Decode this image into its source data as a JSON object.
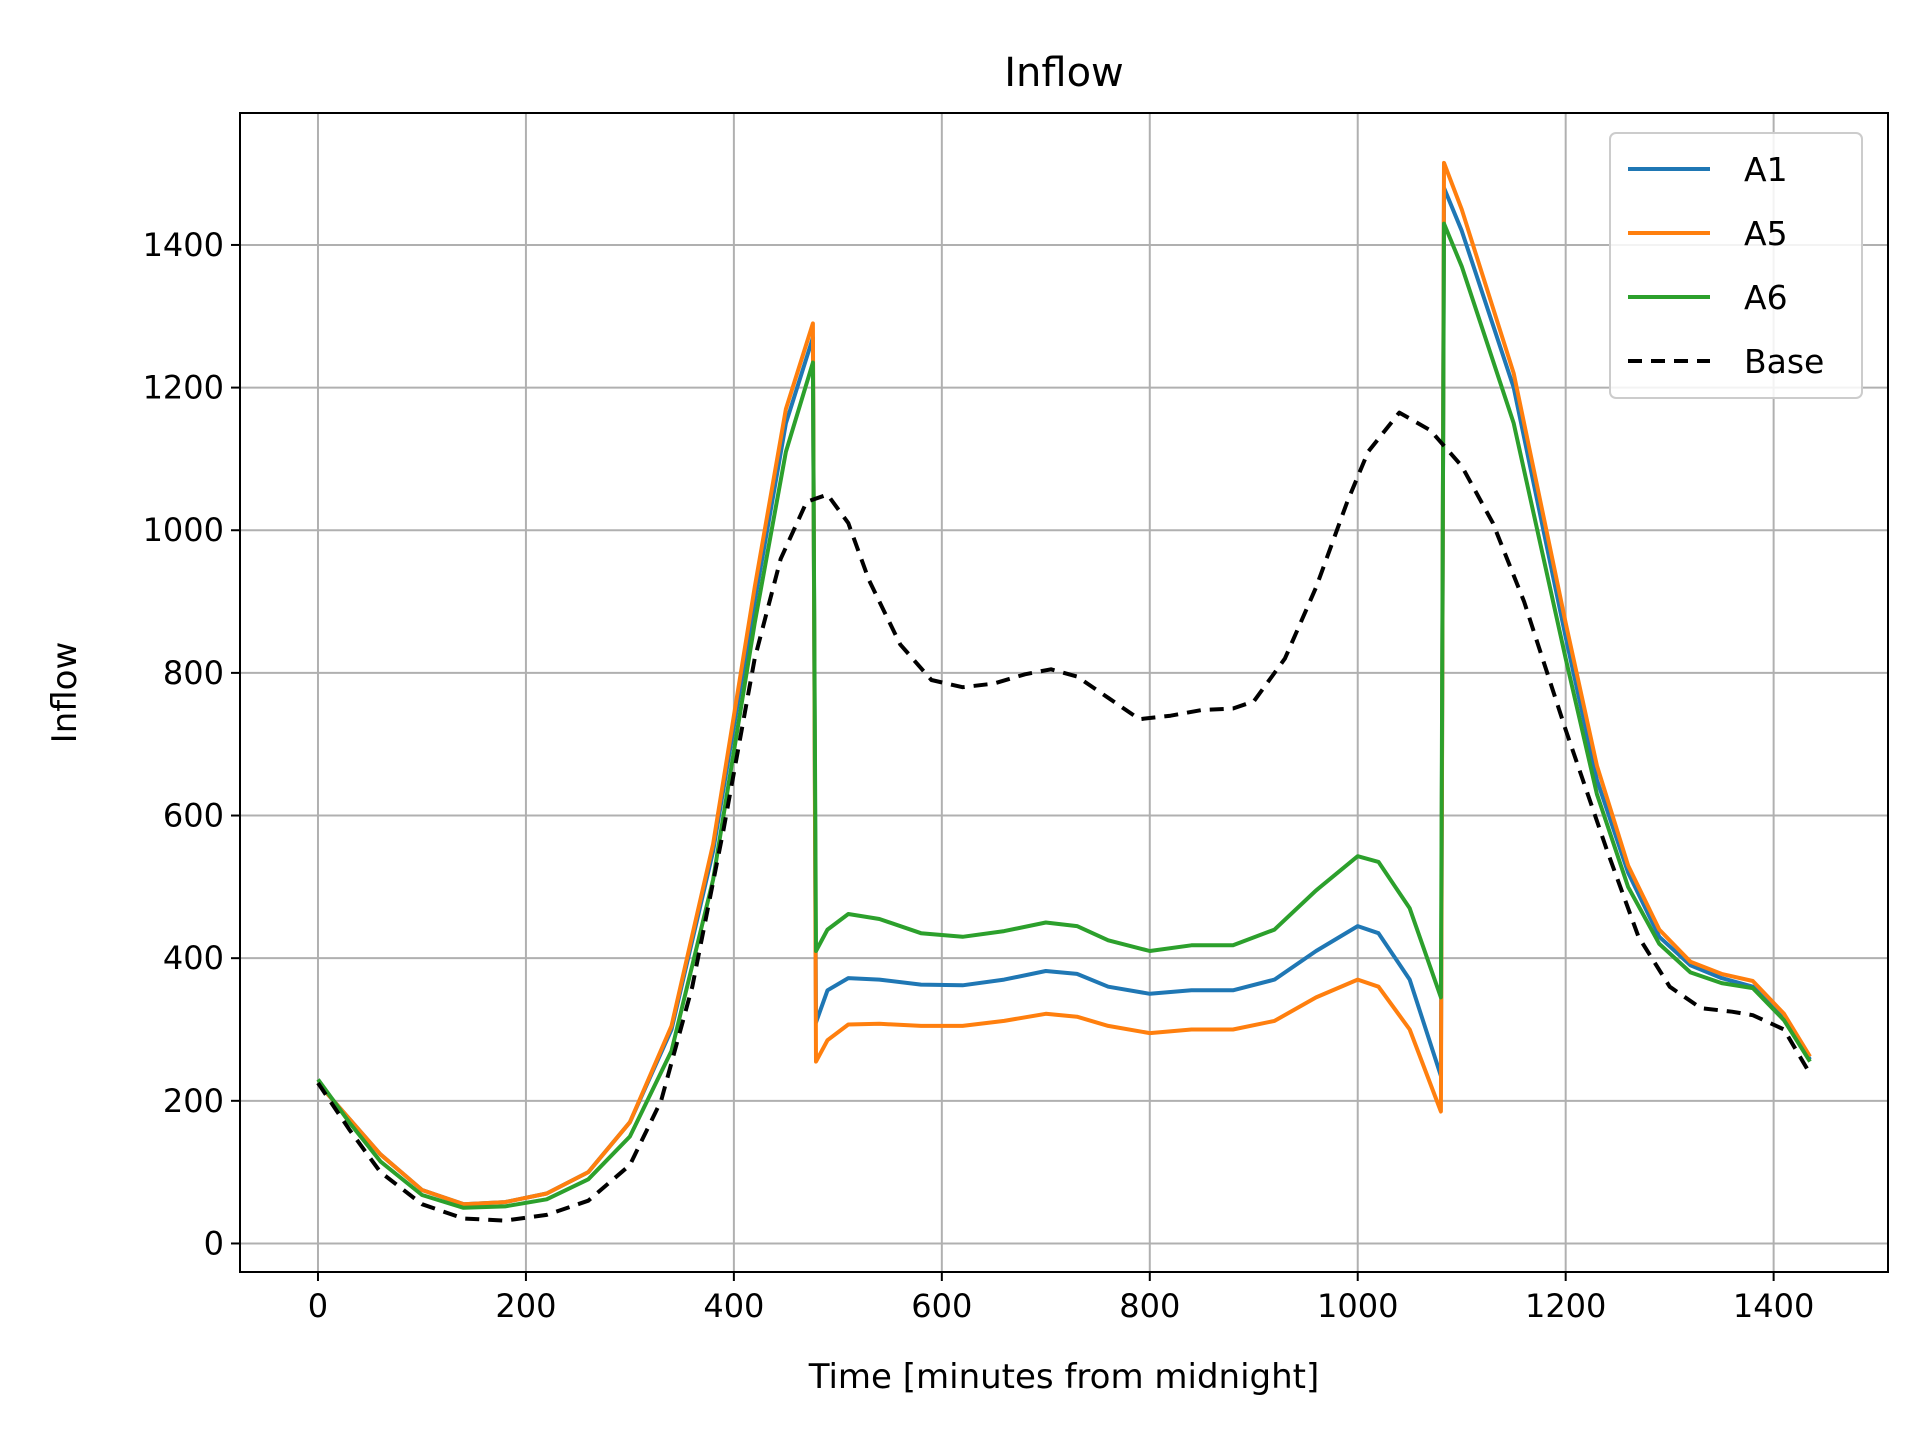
{
  "chart_data": {
    "type": "line",
    "title": "Inflow",
    "xlabel": "Time [minutes from midnight]",
    "ylabel": "Inflow",
    "xlim": [
      -75,
      1510
    ],
    "ylim": [
      -40,
      1585
    ],
    "xticks": [
      0,
      200,
      400,
      600,
      800,
      1000,
      1200,
      1400
    ],
    "yticks": [
      0,
      200,
      400,
      600,
      800,
      1000,
      1200,
      1400
    ],
    "xtick_labels": [
      "0",
      "200",
      "400",
      "600",
      "800",
      "1000",
      "1200",
      "1400"
    ],
    "ytick_labels": [
      "0",
      "200",
      "400",
      "600",
      "800",
      "1000",
      "1200",
      "1400"
    ],
    "grid": true,
    "legend_position": "top-right",
    "series": [
      {
        "name": "A1",
        "color": "#1f77b4",
        "dash": "solid",
        "points": [
          [
            0,
            225
          ],
          [
            30,
            175
          ],
          [
            60,
            125
          ],
          [
            100,
            75
          ],
          [
            140,
            55
          ],
          [
            180,
            58
          ],
          [
            220,
            70
          ],
          [
            260,
            100
          ],
          [
            300,
            170
          ],
          [
            340,
            300
          ],
          [
            380,
            550
          ],
          [
            420,
            900
          ],
          [
            450,
            1150
          ],
          [
            476,
            1270
          ],
          [
            479,
            310
          ],
          [
            490,
            355
          ],
          [
            510,
            372
          ],
          [
            540,
            370
          ],
          [
            580,
            363
          ],
          [
            620,
            362
          ],
          [
            660,
            370
          ],
          [
            700,
            382
          ],
          [
            730,
            378
          ],
          [
            760,
            360
          ],
          [
            800,
            350
          ],
          [
            840,
            355
          ],
          [
            880,
            355
          ],
          [
            920,
            370
          ],
          [
            960,
            410
          ],
          [
            1000,
            445
          ],
          [
            1020,
            435
          ],
          [
            1050,
            370
          ],
          [
            1080,
            235
          ],
          [
            1083,
            1480
          ],
          [
            1100,
            1420
          ],
          [
            1150,
            1200
          ],
          [
            1200,
            850
          ],
          [
            1230,
            650
          ],
          [
            1260,
            520
          ],
          [
            1290,
            430
          ],
          [
            1320,
            390
          ],
          [
            1350,
            372
          ],
          [
            1380,
            360
          ],
          [
            1410,
            315
          ],
          [
            1435,
            258
          ]
        ]
      },
      {
        "name": "A5",
        "color": "#ff7f0e",
        "dash": "solid",
        "points": [
          [
            0,
            225
          ],
          [
            30,
            175
          ],
          [
            60,
            125
          ],
          [
            100,
            75
          ],
          [
            140,
            55
          ],
          [
            180,
            58
          ],
          [
            220,
            70
          ],
          [
            260,
            100
          ],
          [
            300,
            170
          ],
          [
            340,
            305
          ],
          [
            380,
            560
          ],
          [
            420,
            920
          ],
          [
            450,
            1170
          ],
          [
            476,
            1290
          ],
          [
            479,
            255
          ],
          [
            490,
            285
          ],
          [
            510,
            307
          ],
          [
            540,
            308
          ],
          [
            580,
            305
          ],
          [
            620,
            305
          ],
          [
            660,
            312
          ],
          [
            700,
            322
          ],
          [
            730,
            318
          ],
          [
            760,
            305
          ],
          [
            800,
            295
          ],
          [
            840,
            300
          ],
          [
            880,
            300
          ],
          [
            920,
            312
          ],
          [
            960,
            345
          ],
          [
            1000,
            370
          ],
          [
            1020,
            360
          ],
          [
            1050,
            300
          ],
          [
            1080,
            185
          ],
          [
            1083,
            1515
          ],
          [
            1100,
            1450
          ],
          [
            1150,
            1220
          ],
          [
            1200,
            870
          ],
          [
            1230,
            670
          ],
          [
            1260,
            530
          ],
          [
            1290,
            440
          ],
          [
            1320,
            395
          ],
          [
            1350,
            378
          ],
          [
            1380,
            368
          ],
          [
            1410,
            322
          ],
          [
            1435,
            262
          ]
        ]
      },
      {
        "name": "A6",
        "color": "#2ca02c",
        "dash": "solid",
        "points": [
          [
            0,
            230
          ],
          [
            30,
            170
          ],
          [
            60,
            115
          ],
          [
            100,
            68
          ],
          [
            140,
            50
          ],
          [
            180,
            52
          ],
          [
            220,
            62
          ],
          [
            260,
            90
          ],
          [
            300,
            150
          ],
          [
            340,
            270
          ],
          [
            380,
            510
          ],
          [
            420,
            870
          ],
          [
            450,
            1110
          ],
          [
            476,
            1235
          ],
          [
            479,
            410
          ],
          [
            490,
            440
          ],
          [
            510,
            462
          ],
          [
            540,
            455
          ],
          [
            580,
            435
          ],
          [
            620,
            430
          ],
          [
            660,
            438
          ],
          [
            700,
            450
          ],
          [
            730,
            445
          ],
          [
            760,
            425
          ],
          [
            800,
            410
          ],
          [
            840,
            418
          ],
          [
            880,
            418
          ],
          [
            920,
            440
          ],
          [
            960,
            495
          ],
          [
            1000,
            543
          ],
          [
            1020,
            535
          ],
          [
            1050,
            470
          ],
          [
            1080,
            345
          ],
          [
            1083,
            1430
          ],
          [
            1100,
            1370
          ],
          [
            1150,
            1150
          ],
          [
            1200,
            820
          ],
          [
            1230,
            630
          ],
          [
            1260,
            500
          ],
          [
            1290,
            420
          ],
          [
            1320,
            380
          ],
          [
            1350,
            365
          ],
          [
            1380,
            358
          ],
          [
            1410,
            313
          ],
          [
            1435,
            255
          ]
        ]
      },
      {
        "name": "Base",
        "color": "#000000",
        "dash": "dashed",
        "points": [
          [
            0,
            225
          ],
          [
            30,
            160
          ],
          [
            60,
            100
          ],
          [
            100,
            55
          ],
          [
            140,
            35
          ],
          [
            180,
            32
          ],
          [
            220,
            40
          ],
          [
            260,
            60
          ],
          [
            300,
            110
          ],
          [
            330,
            200
          ],
          [
            360,
            360
          ],
          [
            390,
            580
          ],
          [
            420,
            820
          ],
          [
            445,
            960
          ],
          [
            470,
            1040
          ],
          [
            490,
            1050
          ],
          [
            510,
            1010
          ],
          [
            530,
            930
          ],
          [
            560,
            840
          ],
          [
            590,
            790
          ],
          [
            620,
            780
          ],
          [
            650,
            785
          ],
          [
            680,
            798
          ],
          [
            705,
            805
          ],
          [
            730,
            795
          ],
          [
            760,
            765
          ],
          [
            790,
            735
          ],
          [
            820,
            740
          ],
          [
            850,
            748
          ],
          [
            880,
            750
          ],
          [
            900,
            760
          ],
          [
            930,
            820
          ],
          [
            960,
            920
          ],
          [
            990,
            1040
          ],
          [
            1010,
            1110
          ],
          [
            1040,
            1165
          ],
          [
            1070,
            1140
          ],
          [
            1100,
            1090
          ],
          [
            1130,
            1010
          ],
          [
            1160,
            900
          ],
          [
            1200,
            720
          ],
          [
            1240,
            550
          ],
          [
            1270,
            430
          ],
          [
            1300,
            360
          ],
          [
            1330,
            330
          ],
          [
            1360,
            325
          ],
          [
            1380,
            320
          ],
          [
            1410,
            300
          ],
          [
            1435,
            238
          ]
        ]
      }
    ]
  }
}
